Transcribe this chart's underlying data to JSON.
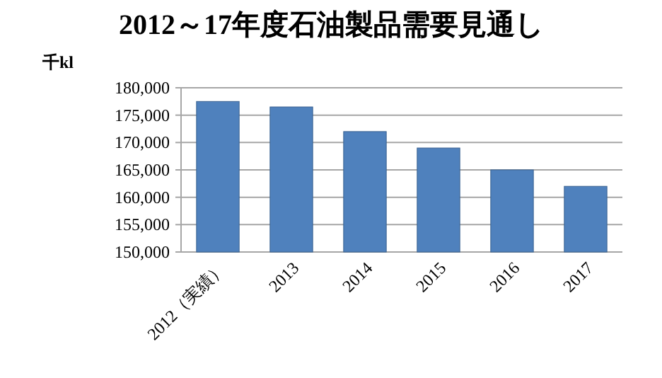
{
  "chart_data": {
    "type": "bar",
    "title": "2012～17年度石油製品需要見通し",
    "ylabel": "千kl",
    "categories": [
      "2012（実績）",
      "2013",
      "2014",
      "2015",
      "2016",
      "2017"
    ],
    "values": [
      177500,
      176500,
      172000,
      169000,
      165000,
      162000
    ],
    "color": "#4f81bd",
    "ylim": [
      150000,
      180000
    ],
    "yticks": [
      {
        "value": 150000,
        "label": "150,000"
      },
      {
        "value": 155000,
        "label": "155,000"
      },
      {
        "value": 160000,
        "label": "160,000"
      },
      {
        "value": 165000,
        "label": "165,000"
      },
      {
        "value": 170000,
        "label": "170,000"
      },
      {
        "value": 175000,
        "label": "175,000"
      },
      {
        "value": 180000,
        "label": "180,000"
      }
    ],
    "grid": "y"
  }
}
